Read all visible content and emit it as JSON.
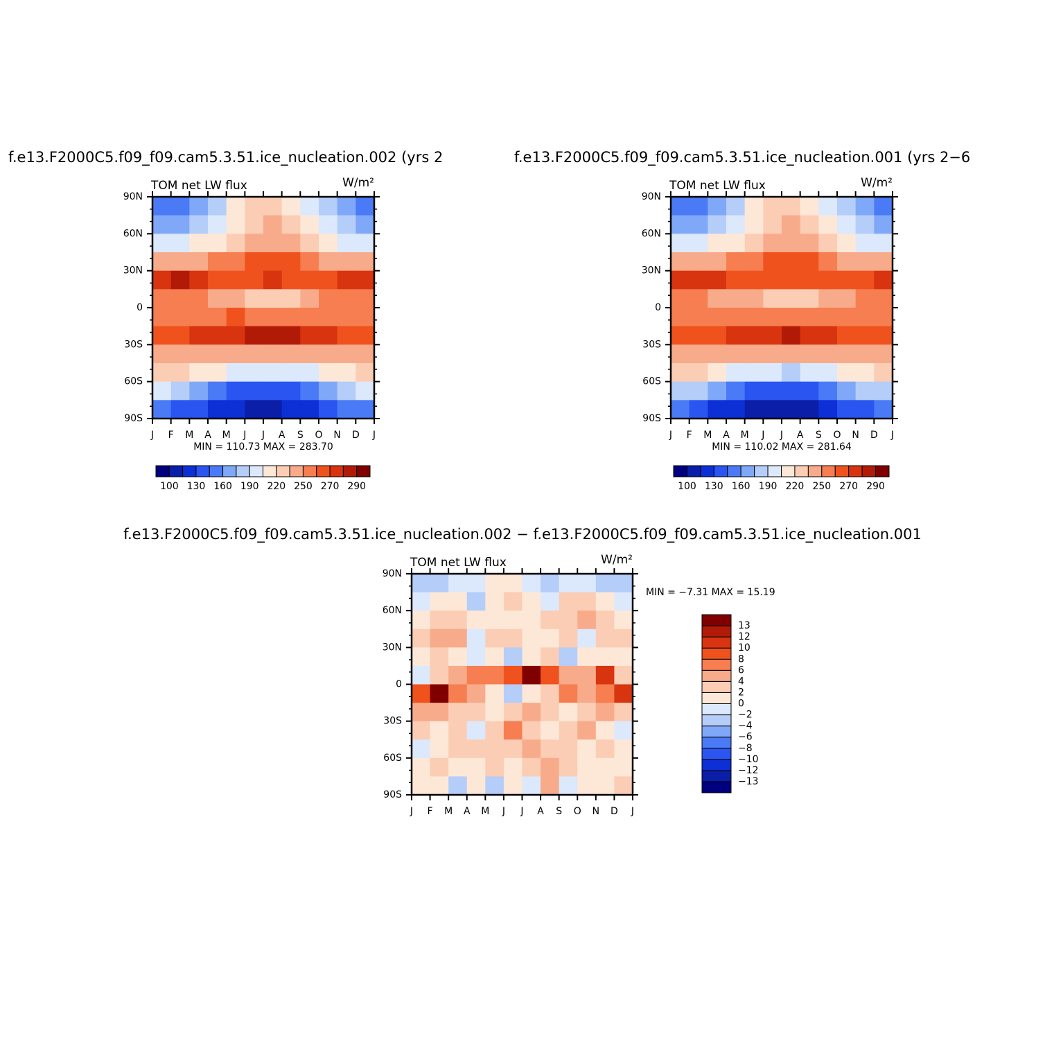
{
  "chart_data": [
    {
      "type": "contour",
      "title": "f.e13.F2000C5.f09_f09.cam5.3.51.ice_nucleation.002 (yrs 2",
      "subtitle_left": "TOM net LW flux",
      "subtitle_right": "W/m²",
      "stats": "MIN =  110.73  MAX =  283.70",
      "colorbar": "bottom",
      "xlim": [
        0,
        12
      ],
      "xticks": [
        {
          "value": 0,
          "label": "J"
        },
        {
          "value": 1,
          "label": "F"
        },
        {
          "value": 2,
          "label": "M"
        },
        {
          "value": 3,
          "label": "A"
        },
        {
          "value": 4,
          "label": "M"
        },
        {
          "value": 5,
          "label": "J"
        },
        {
          "value": 6,
          "label": "J"
        },
        {
          "value": 7,
          "label": "A"
        },
        {
          "value": 8,
          "label": "S"
        },
        {
          "value": 9,
          "label": "O"
        },
        {
          "value": 10,
          "label": "N"
        },
        {
          "value": 11,
          "label": "D"
        },
        {
          "value": 12,
          "label": "J"
        }
      ],
      "ylim": [
        -90,
        90
      ],
      "yticks": [
        {
          "value": 90,
          "label": "90N"
        },
        {
          "value": 60,
          "label": "60N"
        },
        {
          "value": 30,
          "label": "30N"
        },
        0,
        {
          "value": -30,
          "label": "30S"
        },
        {
          "value": -60,
          "label": "60S"
        },
        {
          "value": -90,
          "label": "90S"
        }
      ],
      "levels": [
        100,
        115,
        130,
        145,
        160,
        175,
        190,
        205,
        220,
        235,
        250,
        260,
        270,
        280,
        290
      ],
      "cbticks": [
        100,
        130,
        160,
        190,
        220,
        250,
        270,
        290
      ],
      "colors": [
        "#00007f",
        "#0a1ea8",
        "#0d2fd6",
        "#2a55f0",
        "#4a7af5",
        "#80a8f8",
        "#b5cdf9",
        "#dce8fb",
        "#fde8d8",
        "#fbcdb4",
        "#f8ab8a",
        "#f67e50",
        "#f0521e",
        "#d83410",
        "#b21a08",
        "#800000"
      ],
      "z": [
        [
          150,
          155,
          165,
          185,
          205,
          225,
          230,
          215,
          195,
          175,
          160,
          150
        ],
        [
          165,
          170,
          180,
          195,
          210,
          228,
          235,
          225,
          205,
          190,
          175,
          168
        ],
        [
          195,
          200,
          205,
          215,
          225,
          235,
          240,
          235,
          222,
          210,
          200,
          197
        ],
        [
          240,
          242,
          245,
          250,
          255,
          262,
          265,
          262,
          255,
          248,
          243,
          240
        ],
        [
          275,
          282,
          272,
          265,
          265,
          268,
          270,
          268,
          265,
          265,
          270,
          275
        ],
        [
          255,
          253,
          250,
          245,
          240,
          232,
          225,
          228,
          240,
          250,
          255,
          255
        ],
        [
          255,
          255,
          255,
          258,
          260,
          258,
          255,
          255,
          258,
          258,
          255,
          255
        ],
        [
          265,
          268,
          270,
          275,
          278,
          280,
          282,
          280,
          275,
          270,
          268,
          265
        ],
        [
          248,
          248,
          245,
          242,
          240,
          238,
          238,
          238,
          240,
          242,
          245,
          248
        ],
        [
          225,
          222,
          215,
          205,
          198,
          192,
          190,
          192,
          198,
          208,
          218,
          225
        ],
        [
          190,
          180,
          165,
          150,
          140,
          135,
          135,
          140,
          150,
          165,
          180,
          190
        ],
        [
          150,
          140,
          130,
          120,
          115,
          112,
          112,
          115,
          122,
          135,
          145,
          150
        ]
      ]
    },
    {
      "type": "contour",
      "title": "f.e13.F2000C5.f09_f09.cam5.3.51.ice_nucleation.001 (yrs 2−6",
      "subtitle_left": "TOM net LW flux",
      "subtitle_right": "W/m²",
      "stats": "MIN =  110.02  MAX =  281.64",
      "colorbar": "bottom",
      "xlim": [
        0,
        12
      ],
      "xticks": [
        {
          "value": 0,
          "label": "J"
        },
        {
          "value": 1,
          "label": "F"
        },
        {
          "value": 2,
          "label": "M"
        },
        {
          "value": 3,
          "label": "A"
        },
        {
          "value": 4,
          "label": "M"
        },
        {
          "value": 5,
          "label": "J"
        },
        {
          "value": 6,
          "label": "J"
        },
        {
          "value": 7,
          "label": "A"
        },
        {
          "value": 8,
          "label": "S"
        },
        {
          "value": 9,
          "label": "O"
        },
        {
          "value": 10,
          "label": "N"
        },
        {
          "value": 11,
          "label": "D"
        },
        {
          "value": 12,
          "label": "J"
        }
      ],
      "ylim": [
        -90,
        90
      ],
      "yticks": [
        {
          "value": 90,
          "label": "90N"
        },
        {
          "value": 60,
          "label": "60N"
        },
        {
          "value": 30,
          "label": "30N"
        },
        0,
        {
          "value": -30,
          "label": "30S"
        },
        {
          "value": -60,
          "label": "60S"
        },
        {
          "value": -90,
          "label": "90S"
        }
      ],
      "levels": [
        100,
        115,
        130,
        145,
        160,
        175,
        190,
        205,
        220,
        235,
        250,
        260,
        270,
        280,
        290
      ],
      "cbticks": [
        100,
        130,
        160,
        190,
        220,
        250,
        270,
        290
      ],
      "colors": [
        "#00007f",
        "#0a1ea8",
        "#0d2fd6",
        "#2a55f0",
        "#4a7af5",
        "#80a8f8",
        "#b5cdf9",
        "#dce8fb",
        "#fde8d8",
        "#fbcdb4",
        "#f8ab8a",
        "#f67e50",
        "#f0521e",
        "#d83410",
        "#b21a08",
        "#800000"
      ],
      "z": [
        [
          152,
          156,
          166,
          186,
          206,
          226,
          232,
          216,
          196,
          176,
          162,
          152
        ],
        [
          166,
          171,
          181,
          196,
          211,
          229,
          236,
          226,
          206,
          191,
          176,
          169
        ],
        [
          196,
          201,
          206,
          216,
          226,
          236,
          241,
          236,
          223,
          211,
          201,
          198
        ],
        [
          241,
          243,
          246,
          251,
          256,
          263,
          266,
          263,
          256,
          249,
          244,
          241
        ],
        [
          274,
          275,
          271,
          264,
          264,
          267,
          269,
          267,
          264,
          264,
          269,
          274
        ],
        [
          254,
          252,
          249,
          244,
          239,
          228,
          222,
          226,
          239,
          249,
          254,
          254
        ],
        [
          254,
          254,
          254,
          257,
          259,
          257,
          254,
          254,
          257,
          257,
          254,
          254
        ],
        [
          264,
          267,
          269,
          274,
          277,
          279,
          281,
          279,
          274,
          269,
          267,
          264
        ],
        [
          247,
          247,
          244,
          241,
          239,
          237,
          237,
          237,
          239,
          241,
          244,
          247
        ],
        [
          224,
          221,
          214,
          204,
          197,
          191,
          189,
          191,
          197,
          207,
          217,
          224
        ],
        [
          189,
          179,
          164,
          149,
          139,
          134,
          134,
          139,
          149,
          164,
          179,
          189
        ],
        [
          149,
          139,
          129,
          119,
          114,
          111,
          111,
          114,
          121,
          134,
          144,
          149
        ]
      ]
    },
    {
      "type": "contour",
      "title": "f.e13.F2000C5.f09_f09.cam5.3.51.ice_nucleation.002 − f.e13.F2000C5.f09_f09.cam5.3.51.ice_nucleation.001",
      "subtitle_left": "TOM net LW flux",
      "subtitle_right": "W/m²",
      "stats": "MIN =   −7.31  MAX =   15.19",
      "colorbar": "right",
      "xlim": [
        0,
        12
      ],
      "xticks": [
        {
          "value": 0,
          "label": "J"
        },
        {
          "value": 1,
          "label": "F"
        },
        {
          "value": 2,
          "label": "M"
        },
        {
          "value": 3,
          "label": "A"
        },
        {
          "value": 4,
          "label": "M"
        },
        {
          "value": 5,
          "label": "J"
        },
        {
          "value": 6,
          "label": "J"
        },
        {
          "value": 7,
          "label": "A"
        },
        {
          "value": 8,
          "label": "S"
        },
        {
          "value": 9,
          "label": "O"
        },
        {
          "value": 10,
          "label": "N"
        },
        {
          "value": 11,
          "label": "D"
        },
        {
          "value": 12,
          "label": "J"
        }
      ],
      "ylim": [
        -90,
        90
      ],
      "yticks": [
        {
          "value": 90,
          "label": "90N"
        },
        {
          "value": 60,
          "label": "60N"
        },
        {
          "value": 30,
          "label": "30N"
        },
        0,
        {
          "value": -30,
          "label": "30S"
        },
        {
          "value": -60,
          "label": "60S"
        },
        {
          "value": -90,
          "label": "90S"
        }
      ],
      "levels": [
        {
          "value": -13,
          "label": "−13"
        },
        {
          "value": -12,
          "label": "−12"
        },
        {
          "value": -10,
          "label": "−10"
        },
        {
          "value": -8,
          "label": "−8"
        },
        {
          "value": -6,
          "label": "−6"
        },
        {
          "value": -4,
          "label": "−4"
        },
        {
          "value": -2,
          "label": "−2"
        },
        0,
        2,
        4,
        6,
        8,
        10,
        12,
        13
      ],
      "colors": [
        "#00007f",
        "#0a1ea8",
        "#0d2fd6",
        "#2a55f0",
        "#4a7af5",
        "#80a8f8",
        "#b5cdf9",
        "#dce8fb",
        "#fde8d8",
        "#fbcdb4",
        "#f8ab8a",
        "#f67e50",
        "#f0521e",
        "#d83410",
        "#b21a08",
        "#800000"
      ],
      "z": [
        [
          -4,
          -3,
          -1,
          -2,
          0,
          1,
          -2,
          -3,
          -2,
          -1,
          -3,
          -4
        ],
        [
          -1,
          1,
          0,
          -3,
          0,
          2,
          0,
          -1,
          2,
          3,
          1,
          -1
        ],
        [
          1,
          3,
          2,
          1,
          0,
          1,
          1,
          2,
          3,
          4,
          2,
          1
        ],
        [
          2,
          5,
          4,
          -2,
          2,
          3,
          0,
          1,
          2,
          -2,
          3,
          2
        ],
        [
          1,
          2,
          1,
          -2,
          0,
          -3,
          1,
          2,
          -3,
          1,
          0,
          1
        ],
        [
          -2,
          3,
          4,
          6,
          7,
          9,
          13,
          8,
          4,
          5,
          10,
          2
        ],
        [
          9,
          13,
          7,
          4,
          1,
          -4,
          1,
          3,
          7,
          5,
          6,
          10
        ],
        [
          5,
          4,
          3,
          2,
          1,
          2,
          4,
          2,
          1,
          3,
          4,
          3
        ],
        [
          2,
          1,
          3,
          -2,
          2,
          6,
          3,
          1,
          2,
          4,
          1,
          -1
        ],
        [
          -1,
          1,
          2,
          3,
          2,
          3,
          5,
          3,
          2,
          1,
          2,
          0
        ],
        [
          1,
          2,
          1,
          0,
          2,
          1,
          3,
          4,
          2,
          1,
          1,
          1
        ],
        [
          0,
          1,
          -3,
          1,
          -4,
          1,
          -1,
          5,
          -2,
          1,
          1,
          2
        ]
      ]
    }
  ]
}
